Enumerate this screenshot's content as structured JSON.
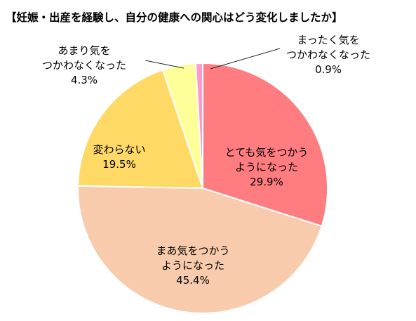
{
  "chart_data": {
    "type": "pie",
    "title": "【妊娠・出産を経験し、自分の健康への関心はどう変化しましたか】",
    "start_angle_deg": 0,
    "direction": "clockwise",
    "legend": "none",
    "slices": [
      {
        "label_lines": [
          "とても気をつかう",
          "ようになった"
        ],
        "value": 29.9,
        "value_label": "29.9%",
        "color": "#FF7C80"
      },
      {
        "label_lines": [
          "まあ気をつかう",
          "ようになった"
        ],
        "value": 45.4,
        "value_label": "45.4%",
        "color": "#F8CBAD"
      },
      {
        "label_lines": [
          "変わらない"
        ],
        "value": 19.5,
        "value_label": "19.5%",
        "color": "#FFD966"
      },
      {
        "label_lines": [
          "あまり気を",
          "つかわなくなった"
        ],
        "value": 4.3,
        "value_label": "4.3%",
        "color": "#FFFF99"
      },
      {
        "label_lines": [
          "まったく気を",
          "つかわなくなった"
        ],
        "value": 0.9,
        "value_label": "0.9%",
        "color": "#FF99CC"
      }
    ]
  }
}
